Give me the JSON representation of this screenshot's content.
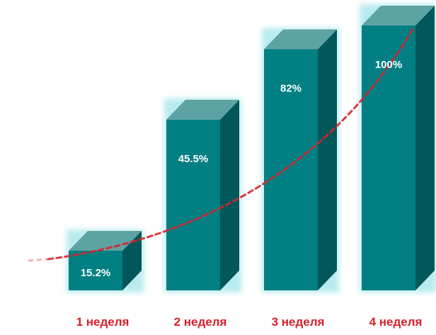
{
  "chart_data": {
    "type": "bar",
    "categories": [
      "1 неделя",
      "2 неделя",
      "3 неделя",
      "4 неделя"
    ],
    "values": [
      15.2,
      45.5,
      82,
      100
    ],
    "value_labels": [
      "15.2%",
      "45.5%",
      "82%",
      "100%"
    ],
    "title": "",
    "xlabel": "",
    "ylabel": "",
    "ylim": [
      0,
      100
    ],
    "grid": false,
    "legend": "none",
    "trendline": "dashed-curve",
    "colors": {
      "bar_front": "#017f82",
      "bar_top": "#5ea3a4",
      "bar_side": "#02575a",
      "bar_glow": "#7fdbe0",
      "category_label": "#d81f2a",
      "value_label": "#ffffff",
      "trendline": "#d8232c"
    }
  }
}
